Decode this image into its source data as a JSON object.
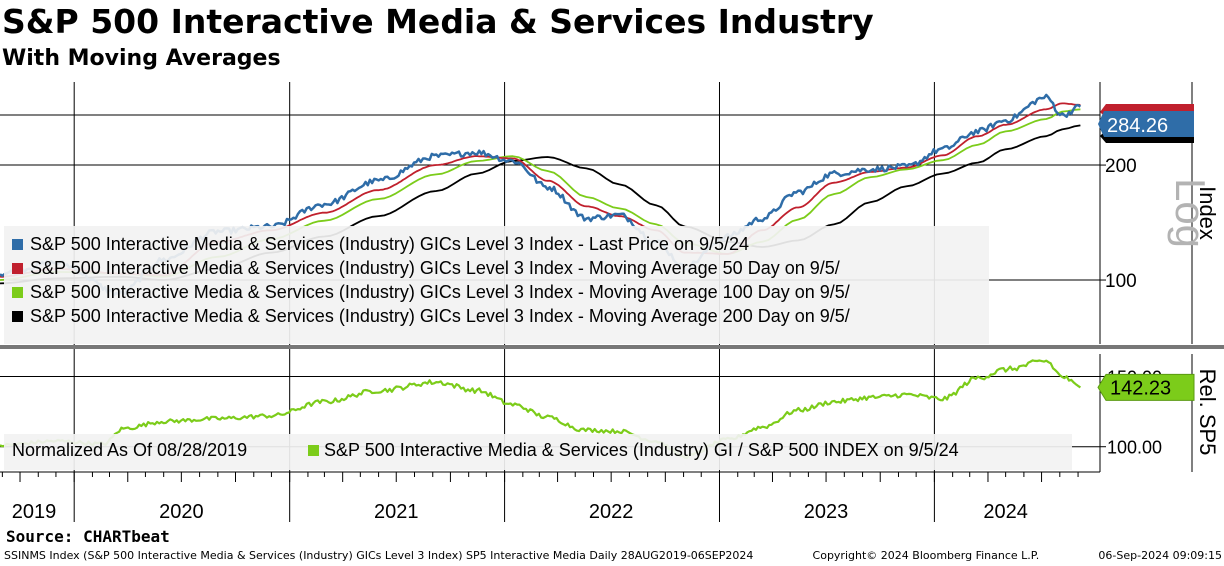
{
  "title": "S&P 500 Interactive Media & Services Industry",
  "subtitle": "With Moving Averages",
  "source": "Source: CHARTbeat",
  "footer": {
    "security": "SSINMS Index (S&P 500 Interactive Media & Services (Industry) GICs Level 3 Index) SP5 Interactive Media  Daily 28AUG2019-06SEP2024",
    "copyright": "Copyright© 2024 Bloomberg Finance L.P.",
    "timestamp": "06-Sep-2024 09:09:15"
  },
  "colors": {
    "price": "#2f6da8",
    "ma50": "#c0202d",
    "ma100": "#7ccc1a",
    "ma200": "#000000",
    "relative": "#7ccc1a"
  },
  "chart_data": [
    {
      "type": "line",
      "panel": "upper",
      "scale": "log",
      "ylabel": "Index",
      "scale_label": "Log",
      "ylim": [
        68,
        330
      ],
      "yticks": [
        100,
        200
      ],
      "x_tick_labels": [
        "2019",
        "2020",
        "2021",
        "2022",
        "2023",
        "2024"
      ],
      "x_dates": [
        "2019-08-28",
        "2019-12-01",
        "2020-03-20",
        "2020-06-01",
        "2020-09-01",
        "2020-12-01",
        "2021-03-01",
        "2021-06-01",
        "2021-09-07",
        "2021-11-15",
        "2022-01-15",
        "2022-03-15",
        "2022-05-20",
        "2022-07-15",
        "2022-09-15",
        "2022-11-03",
        "2023-01-15",
        "2023-03-15",
        "2023-05-15",
        "2023-07-15",
        "2023-09-15",
        "2023-11-15",
        "2024-01-15",
        "2024-03-15",
        "2024-05-01",
        "2024-07-09",
        "2024-08-05",
        "2024-09-05"
      ],
      "series": [
        {
          "name": "S&P 500 Interactive Media & Services (Industry) GICs Level 3 Index - Last Price on 9/5/24",
          "color": "#2f6da8",
          "values": [
            104,
            111,
            92,
            113,
            134,
            138,
            158,
            182,
            211,
            216,
            205,
            175,
            145,
            148,
            126,
            108,
            130,
            145,
            170,
            190,
            195,
            198,
            220,
            245,
            262,
            301,
            270,
            284.26
          ]
        },
        {
          "name": "S&P 500 Interactive Media & Services (Industry) GICs Level 3 Index - Moving Average 50 Day on 9/5/",
          "color": "#c0202d",
          "values": [
            102,
            107,
            104,
            103,
            126,
            135,
            150,
            172,
            200,
            211,
            208,
            182,
            156,
            147,
            135,
            118,
            117,
            135,
            155,
            180,
            192,
            197,
            212,
            238,
            255,
            280,
            290,
            287.5
          ]
        },
        {
          "name": "S&P 500 Interactive Media & Services (Industry) GICs Level 3 Index - Moving Average 100 Day on 9/5/",
          "color": "#7ccc1a",
          "values": [
            100,
            105,
            104,
            102,
            115,
            128,
            143,
            163,
            189,
            205,
            211,
            193,
            165,
            154,
            140,
            125,
            117,
            126,
            144,
            168,
            186,
            195,
            206,
            226,
            245,
            264,
            276,
            280
          ]
        },
        {
          "name": "S&P 500 Interactive Media & Services (Industry) GICs Level 3 Index - Moving Average 200 Day on 9/5/",
          "color": "#000000",
          "values": [
            98,
            101,
            102,
            100,
            107,
            118,
            130,
            147,
            171,
            190,
            205,
            210,
            196,
            178,
            157,
            138,
            126,
            122,
            127,
            140,
            160,
            176,
            190,
            203,
            220,
            238,
            248,
            254
          ]
        }
      ],
      "last_value_labels": [
        "284.26"
      ]
    },
    {
      "type": "line",
      "panel": "lower",
      "ylabel": "Rel. SP5",
      "ylim": [
        82,
        166
      ],
      "yticks": [
        100,
        150
      ],
      "ytick_labels": [
        "100.00",
        "150.00"
      ],
      "x_dates": [
        "2019-08-28",
        "2019-12-01",
        "2020-02-20",
        "2020-03-25",
        "2020-06-01",
        "2020-09-01",
        "2020-12-01",
        "2021-03-01",
        "2021-06-01",
        "2021-09-07",
        "2021-11-15",
        "2022-01-15",
        "2022-03-15",
        "2022-05-15",
        "2022-07-15",
        "2022-09-15",
        "2022-11-03",
        "2023-01-15",
        "2023-03-15",
        "2023-05-15",
        "2023-07-15",
        "2023-09-15",
        "2023-11-15",
        "2024-01-15",
        "2024-03-15",
        "2024-05-01",
        "2024-07-09",
        "2024-08-05",
        "2024-09-05"
      ],
      "series": [
        {
          "name": "S&P 500 Interactive Media & Services (Industry) GI / S&P 500 INDEX on 9/5/24",
          "color": "#7ccc1a",
          "values": [
            101,
            104,
            102,
            113,
            118,
            120,
            122,
            132,
            140,
            146,
            140,
            130,
            121,
            112,
            111,
            104,
            93,
            105,
            114,
            126,
            132,
            135,
            137,
            134,
            149,
            155,
            161,
            150,
            142.23
          ]
        }
      ],
      "last_value_labels": [
        "142.23"
      ],
      "annotation": "Normalized As Of 08/28/2019"
    }
  ]
}
